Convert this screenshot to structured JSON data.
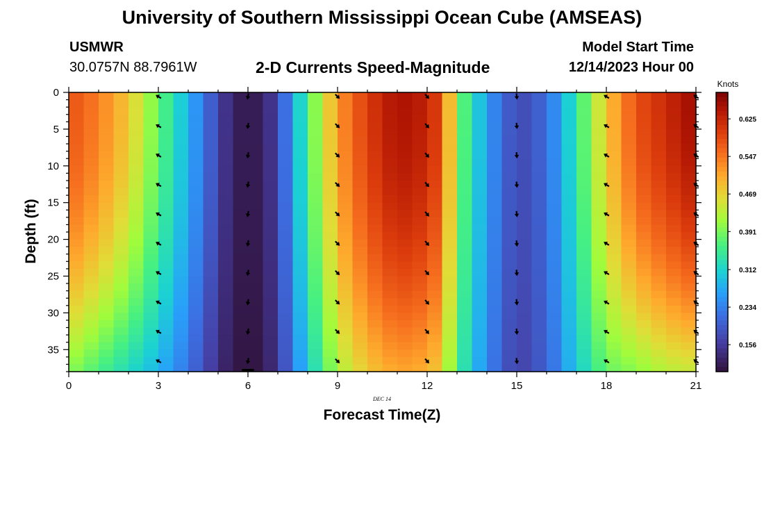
{
  "header": {
    "title": "University of Southern Mississippi Ocean Cube (AMSEAS)",
    "station": "USMWR",
    "coords": "30.0757N  88.7961W",
    "plot_title": "2-D Currents Speed-Magnitude",
    "start_label": "Model Start Time",
    "start_value": "12/14/2023 Hour 00"
  },
  "footer": {
    "title": "University of Southern Mississippi Ocean Cube (AMSEAS)"
  },
  "chart_data": {
    "type": "heatmap",
    "title": "2-D Currents Speed-Magnitude",
    "xlabel": "Forecast Time(Z)",
    "ylabel": "Depth (ft)",
    "date_label": "DEC 14",
    "xlim": [
      0,
      21
    ],
    "ylim": [
      0,
      38
    ],
    "x_ticks": [
      0,
      3,
      6,
      9,
      12,
      15,
      18,
      21
    ],
    "x_tick_labels": [
      "0",
      "3",
      "6",
      "9",
      "12",
      "15",
      "18",
      "21"
    ],
    "y_ticks": [
      0,
      5,
      10,
      15,
      20,
      25,
      30,
      35
    ],
    "y_tick_labels": [
      "0",
      "5",
      "10",
      "15",
      "20",
      "25",
      "30",
      "35"
    ],
    "colorbar": {
      "label": "Knots",
      "min": 0.1,
      "max": 0.68,
      "ticks": [
        0.156,
        0.234,
        0.312,
        0.391,
        0.469,
        0.547,
        0.625
      ],
      "tick_labels": [
        "0.156",
        "0.234",
        "0.312",
        "0.391",
        "0.469",
        "0.547",
        "0.625"
      ]
    },
    "speed_profile": {
      "hours": [
        0,
        1,
        2,
        3,
        4,
        5,
        5.5,
        6,
        6.5,
        7,
        8,
        9,
        10,
        11,
        12,
        12.5,
        13,
        14,
        15,
        16,
        17,
        18,
        19,
        20,
        21
      ],
      "surface_knots": [
        0.58,
        0.54,
        0.48,
        0.38,
        0.28,
        0.17,
        0.12,
        0.11,
        0.12,
        0.17,
        0.36,
        0.52,
        0.6,
        0.65,
        0.63,
        0.58,
        0.4,
        0.26,
        0.17,
        0.21,
        0.34,
        0.48,
        0.58,
        0.62,
        0.66
      ],
      "bottom_knots": [
        0.4,
        0.36,
        0.32,
        0.28,
        0.22,
        0.14,
        0.11,
        0.1,
        0.11,
        0.15,
        0.3,
        0.42,
        0.48,
        0.51,
        0.5,
        0.47,
        0.36,
        0.24,
        0.16,
        0.2,
        0.3,
        0.38,
        0.4,
        0.43,
        0.44
      ]
    },
    "vectors": {
      "hours": [
        3,
        6,
        9,
        12,
        15,
        18,
        21
      ],
      "depths_ft": [
        0,
        4,
        8,
        12,
        16,
        20,
        24,
        28,
        32,
        36
      ],
      "direction_deg": [
        300,
        190,
        135,
        140,
        175,
        300,
        305
      ],
      "note": "direction the current flows toward, degrees clockwise from north"
    }
  }
}
